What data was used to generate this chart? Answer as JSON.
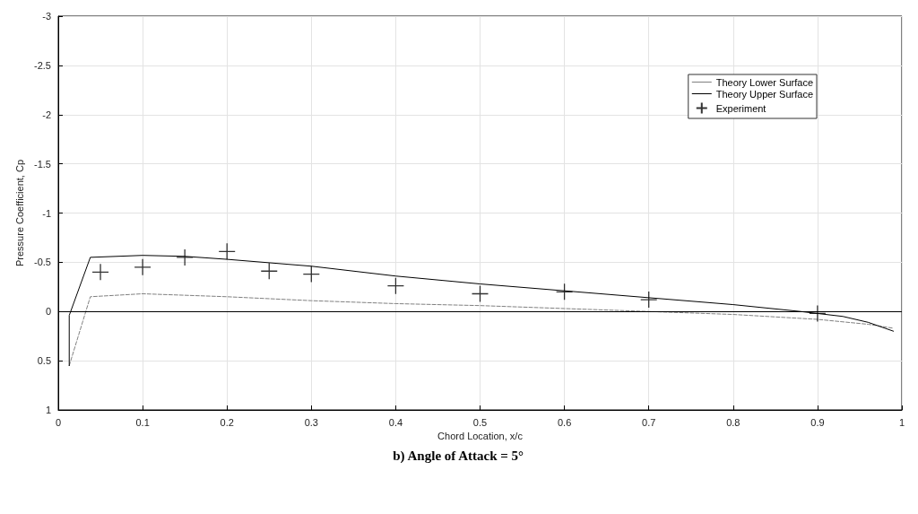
{
  "chart_data": {
    "type": "line",
    "xlabel": "Chord Location, x/c",
    "ylabel": "Pressure Coefficient, Cp",
    "annotations": [
      "b) Angle of Attack = 5°"
    ],
    "series": [
      {
        "name": "Theory Lower Surface",
        "color": "#808080",
        "line_style": "dashed",
        "marker": "none",
        "x": [
          0.013,
          0.038,
          0.1,
          0.2,
          0.3,
          0.4,
          0.5,
          0.6,
          0.7,
          0.8,
          0.9,
          0.96,
          0.99
        ],
        "values": [
          0.55,
          -0.15,
          -0.18,
          -0.15,
          -0.11,
          -0.08,
          -0.06,
          -0.03,
          0,
          0.03,
          0.08,
          0.13,
          0.17
        ]
      },
      {
        "name": "Theory Upper Surface",
        "color": "#000000",
        "line_style": "solid",
        "marker": "none",
        "x": [
          0.013,
          0.013,
          0.038,
          0.1,
          0.15,
          0.2,
          0.3,
          0.4,
          0.5,
          0.6,
          0.7,
          0.8,
          0.88,
          0.93,
          0.96,
          0.99
        ],
        "values": [
          0.55,
          0.04,
          -0.55,
          -0.57,
          -0.56,
          -0.53,
          -0.46,
          -0.36,
          -0.28,
          -0.21,
          -0.14,
          -0.07,
          0,
          0.05,
          0.11,
          0.2
        ]
      },
      {
        "name": "Experiment",
        "type": "scatter",
        "color": "#000000",
        "marker": "cross",
        "x": [
          0.05,
          0.1,
          0.15,
          0.2,
          0.25,
          0.3,
          0.4,
          0.5,
          0.6,
          0.7,
          0.9
        ],
        "values": [
          -0.4,
          -0.45,
          -0.55,
          -0.61,
          -0.41,
          -0.38,
          -0.26,
          -0.18,
          -0.2,
          -0.12,
          0.02
        ]
      }
    ],
    "xlim": [
      0,
      1
    ],
    "xticks": [
      0,
      0.1,
      0.2,
      0.3,
      0.4,
      0.5,
      0.6,
      0.7,
      0.8,
      0.9,
      1
    ],
    "ylim": [
      1,
      -3
    ],
    "yticks": [
      -3,
      -2.5,
      -2,
      -1.5,
      -1,
      -0.5,
      0,
      0.5,
      1
    ],
    "ref_lines": [
      {
        "axis": "y",
        "value": 0,
        "color": "#000000",
        "line_style": "solid"
      }
    ],
    "grid": true,
    "legend": "top right"
  }
}
